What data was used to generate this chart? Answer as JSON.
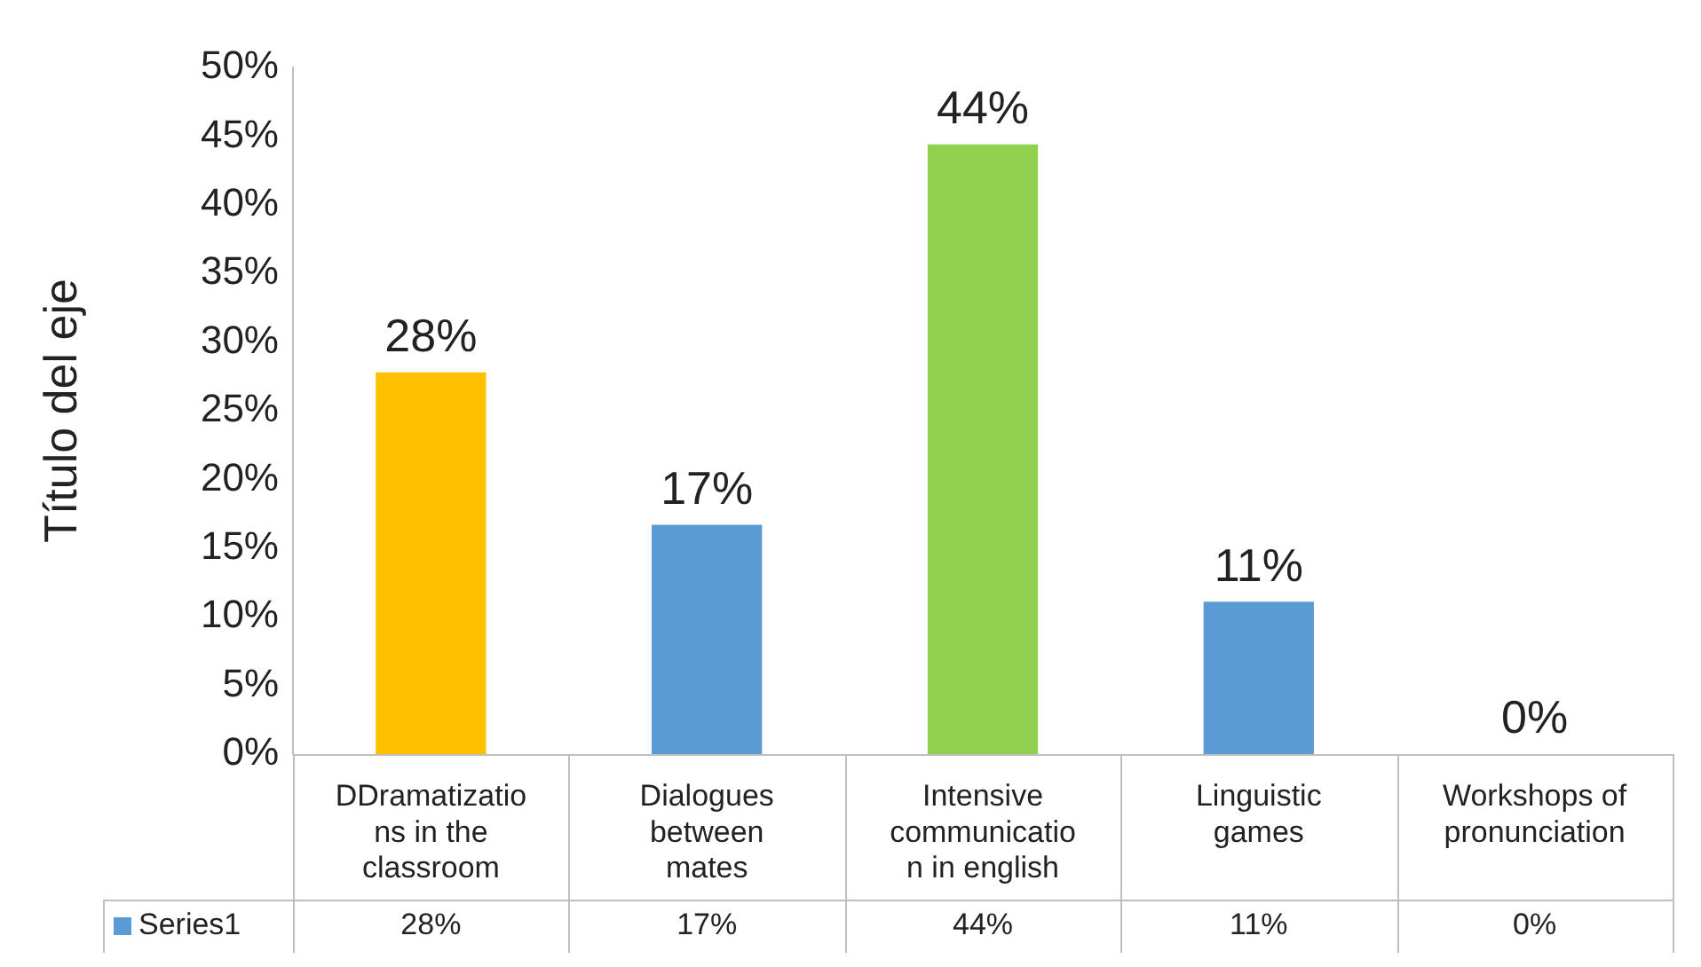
{
  "chart_data": {
    "type": "bar",
    "ylabel": "Título del eje",
    "categories": [
      "DDramatizations in the classroom",
      "Dialogues between mates",
      "Intensive communication in english",
      "Linguistic games",
      "Workshops of pronunciation"
    ],
    "series": [
      {
        "name": "Series1",
        "color": "#5b9bd5",
        "colors": [
          "#ffc000",
          "#5b9bd5",
          "#92d050",
          "#5b9bd5",
          "#5b9bd5"
        ],
        "values": [
          27.8,
          16.7,
          44.4,
          11.1,
          0
        ],
        "value_labels": [
          "28%",
          "17%",
          "44%",
          "11%",
          "0%"
        ]
      }
    ],
    "ylim": [
      0,
      50
    ],
    "yticks": [
      {
        "value": 0,
        "label": "0%"
      },
      {
        "value": 5,
        "label": "5%"
      },
      {
        "value": 10,
        "label": "10%"
      },
      {
        "value": 15,
        "label": "15%"
      },
      {
        "value": 20,
        "label": "20%"
      },
      {
        "value": 25,
        "label": "25%"
      },
      {
        "value": 30,
        "label": "30%"
      },
      {
        "value": 35,
        "label": "35%"
      },
      {
        "value": 40,
        "label": "40%"
      },
      {
        "value": 45,
        "label": "45%"
      },
      {
        "value": 50,
        "label": "50%"
      }
    ],
    "legend": "bottom left"
  }
}
